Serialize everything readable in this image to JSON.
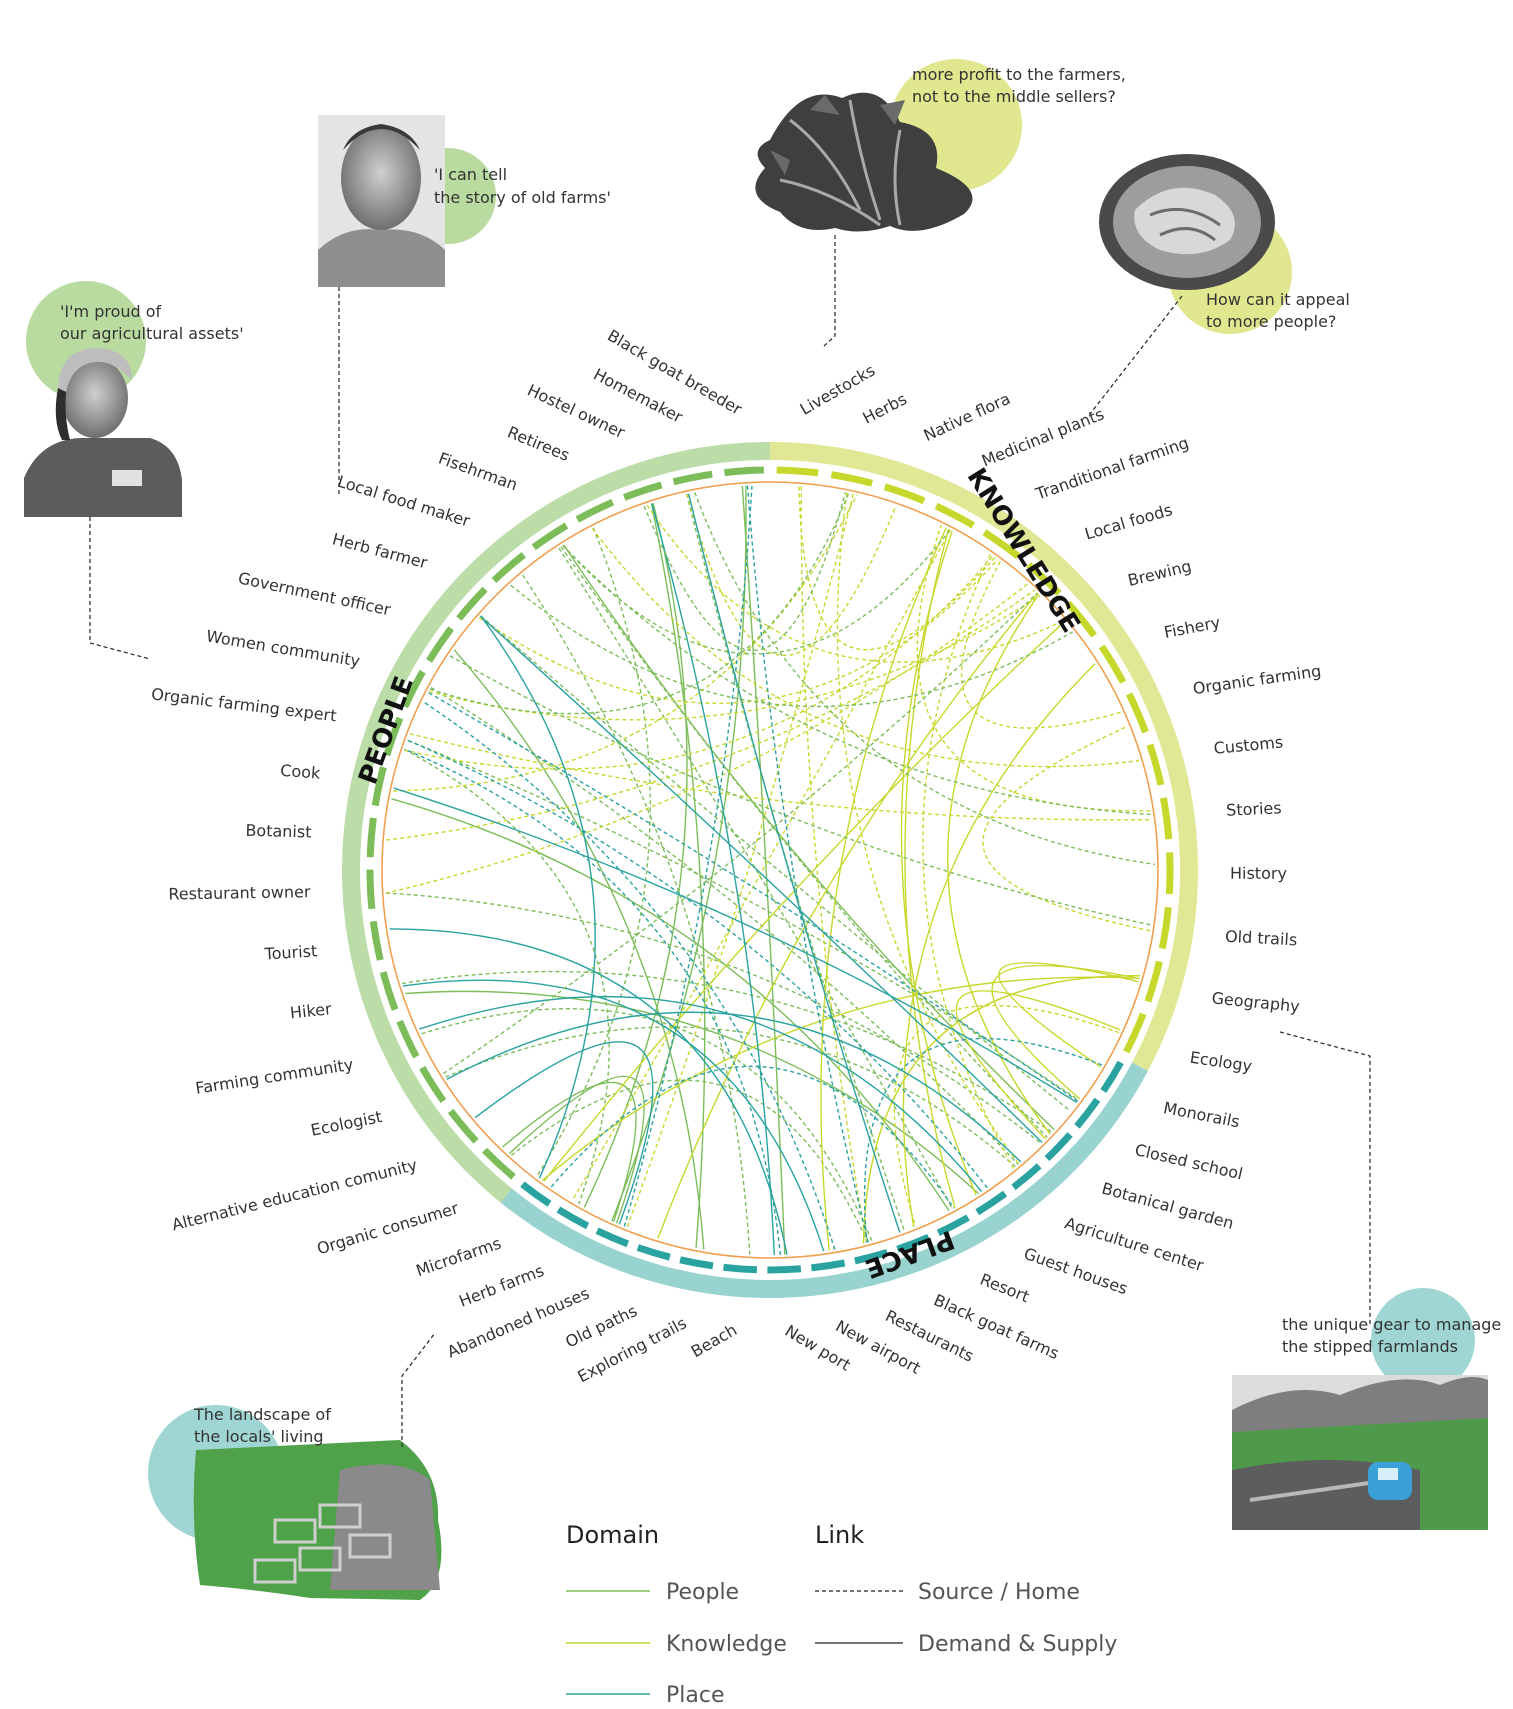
{
  "colors": {
    "people": "#7cbd5a",
    "people_ring": "#bcdca8",
    "knowledge": "#c7d82c",
    "knowledge_ring": "#e1e895",
    "place": "#2aa3a0",
    "place_ring": "#98d3d0",
    "inner_circle": "#f0a050",
    "bubble_people": "#b9dba0",
    "bubble_knowledge": "#e0e78e",
    "bubble_place": "#9fd6d3"
  },
  "domains": {
    "people": "PEOPLE",
    "knowledge": "KNOWLEDGE",
    "place": "PLACE"
  },
  "nodes": {
    "people": [
      "Black goat breeder",
      "Homemaker",
      "Hostel owner",
      "Retirees",
      "Fisehrman",
      "Local food maker",
      "Herb farmer",
      "Government officer",
      "Women community",
      "Organic farming expert",
      "Cook",
      "Botanist",
      "Restaurant owner",
      "Tourist",
      "Hiker",
      "Farming community",
      "Ecologist",
      "Alternative education comunity",
      "Organic consumer"
    ],
    "knowledge": [
      "Livestocks",
      "Herbs",
      "Native flora",
      "Medicinal plants",
      "Tranditional farming",
      "Local foods",
      "Brewing",
      "Fishery",
      "Organic farming",
      "Customs",
      "Stories",
      "History",
      "Old trails",
      "Geography",
      "Ecology"
    ],
    "place": [
      "Monorails",
      "Closed school",
      "Botanical garden",
      "Agriculture center",
      "Guest houses",
      "Resort",
      "Black goat farms",
      "Restaurants",
      "New airport",
      "New port",
      "Beach",
      "Exploring trails",
      "Old paths",
      "Abandoned houses",
      "Herb farms",
      "Microfarms"
    ]
  },
  "annotations": [
    {
      "id": "farmer",
      "lines": [
        "'I can tell",
        "the story of old farms'"
      ],
      "domain": "people",
      "photo": "elderly-farmer-portrait"
    },
    {
      "id": "woman",
      "lines": [
        "'I'm proud of",
        "our agricultural assets'"
      ],
      "domain": "people",
      "photo": "woman-portrait"
    },
    {
      "id": "herbs",
      "lines": [
        "more profit to the farmers,",
        "not to the middle sellers?"
      ],
      "domain": "knowledge",
      "photo": "herb-bundle"
    },
    {
      "id": "food",
      "lines": [
        "How can it appeal",
        "to more people?"
      ],
      "domain": "knowledge",
      "photo": "food-bowl"
    },
    {
      "id": "monorail",
      "lines": [
        "the unique gear to manage",
        "the stipped farmlands"
      ],
      "domain": "place",
      "photo": "monorail-farmland"
    },
    {
      "id": "landscape",
      "lines": [
        "The landscape of",
        "the locals' living"
      ],
      "domain": "place",
      "photo": "microfarm-landscape"
    }
  ],
  "legend": {
    "domain_title": "Domain",
    "link_title": "Link",
    "domain_items": [
      "People",
      "Knowledge",
      "Place"
    ],
    "link_items": [
      "Source / Home",
      "Demand & Supply"
    ]
  }
}
